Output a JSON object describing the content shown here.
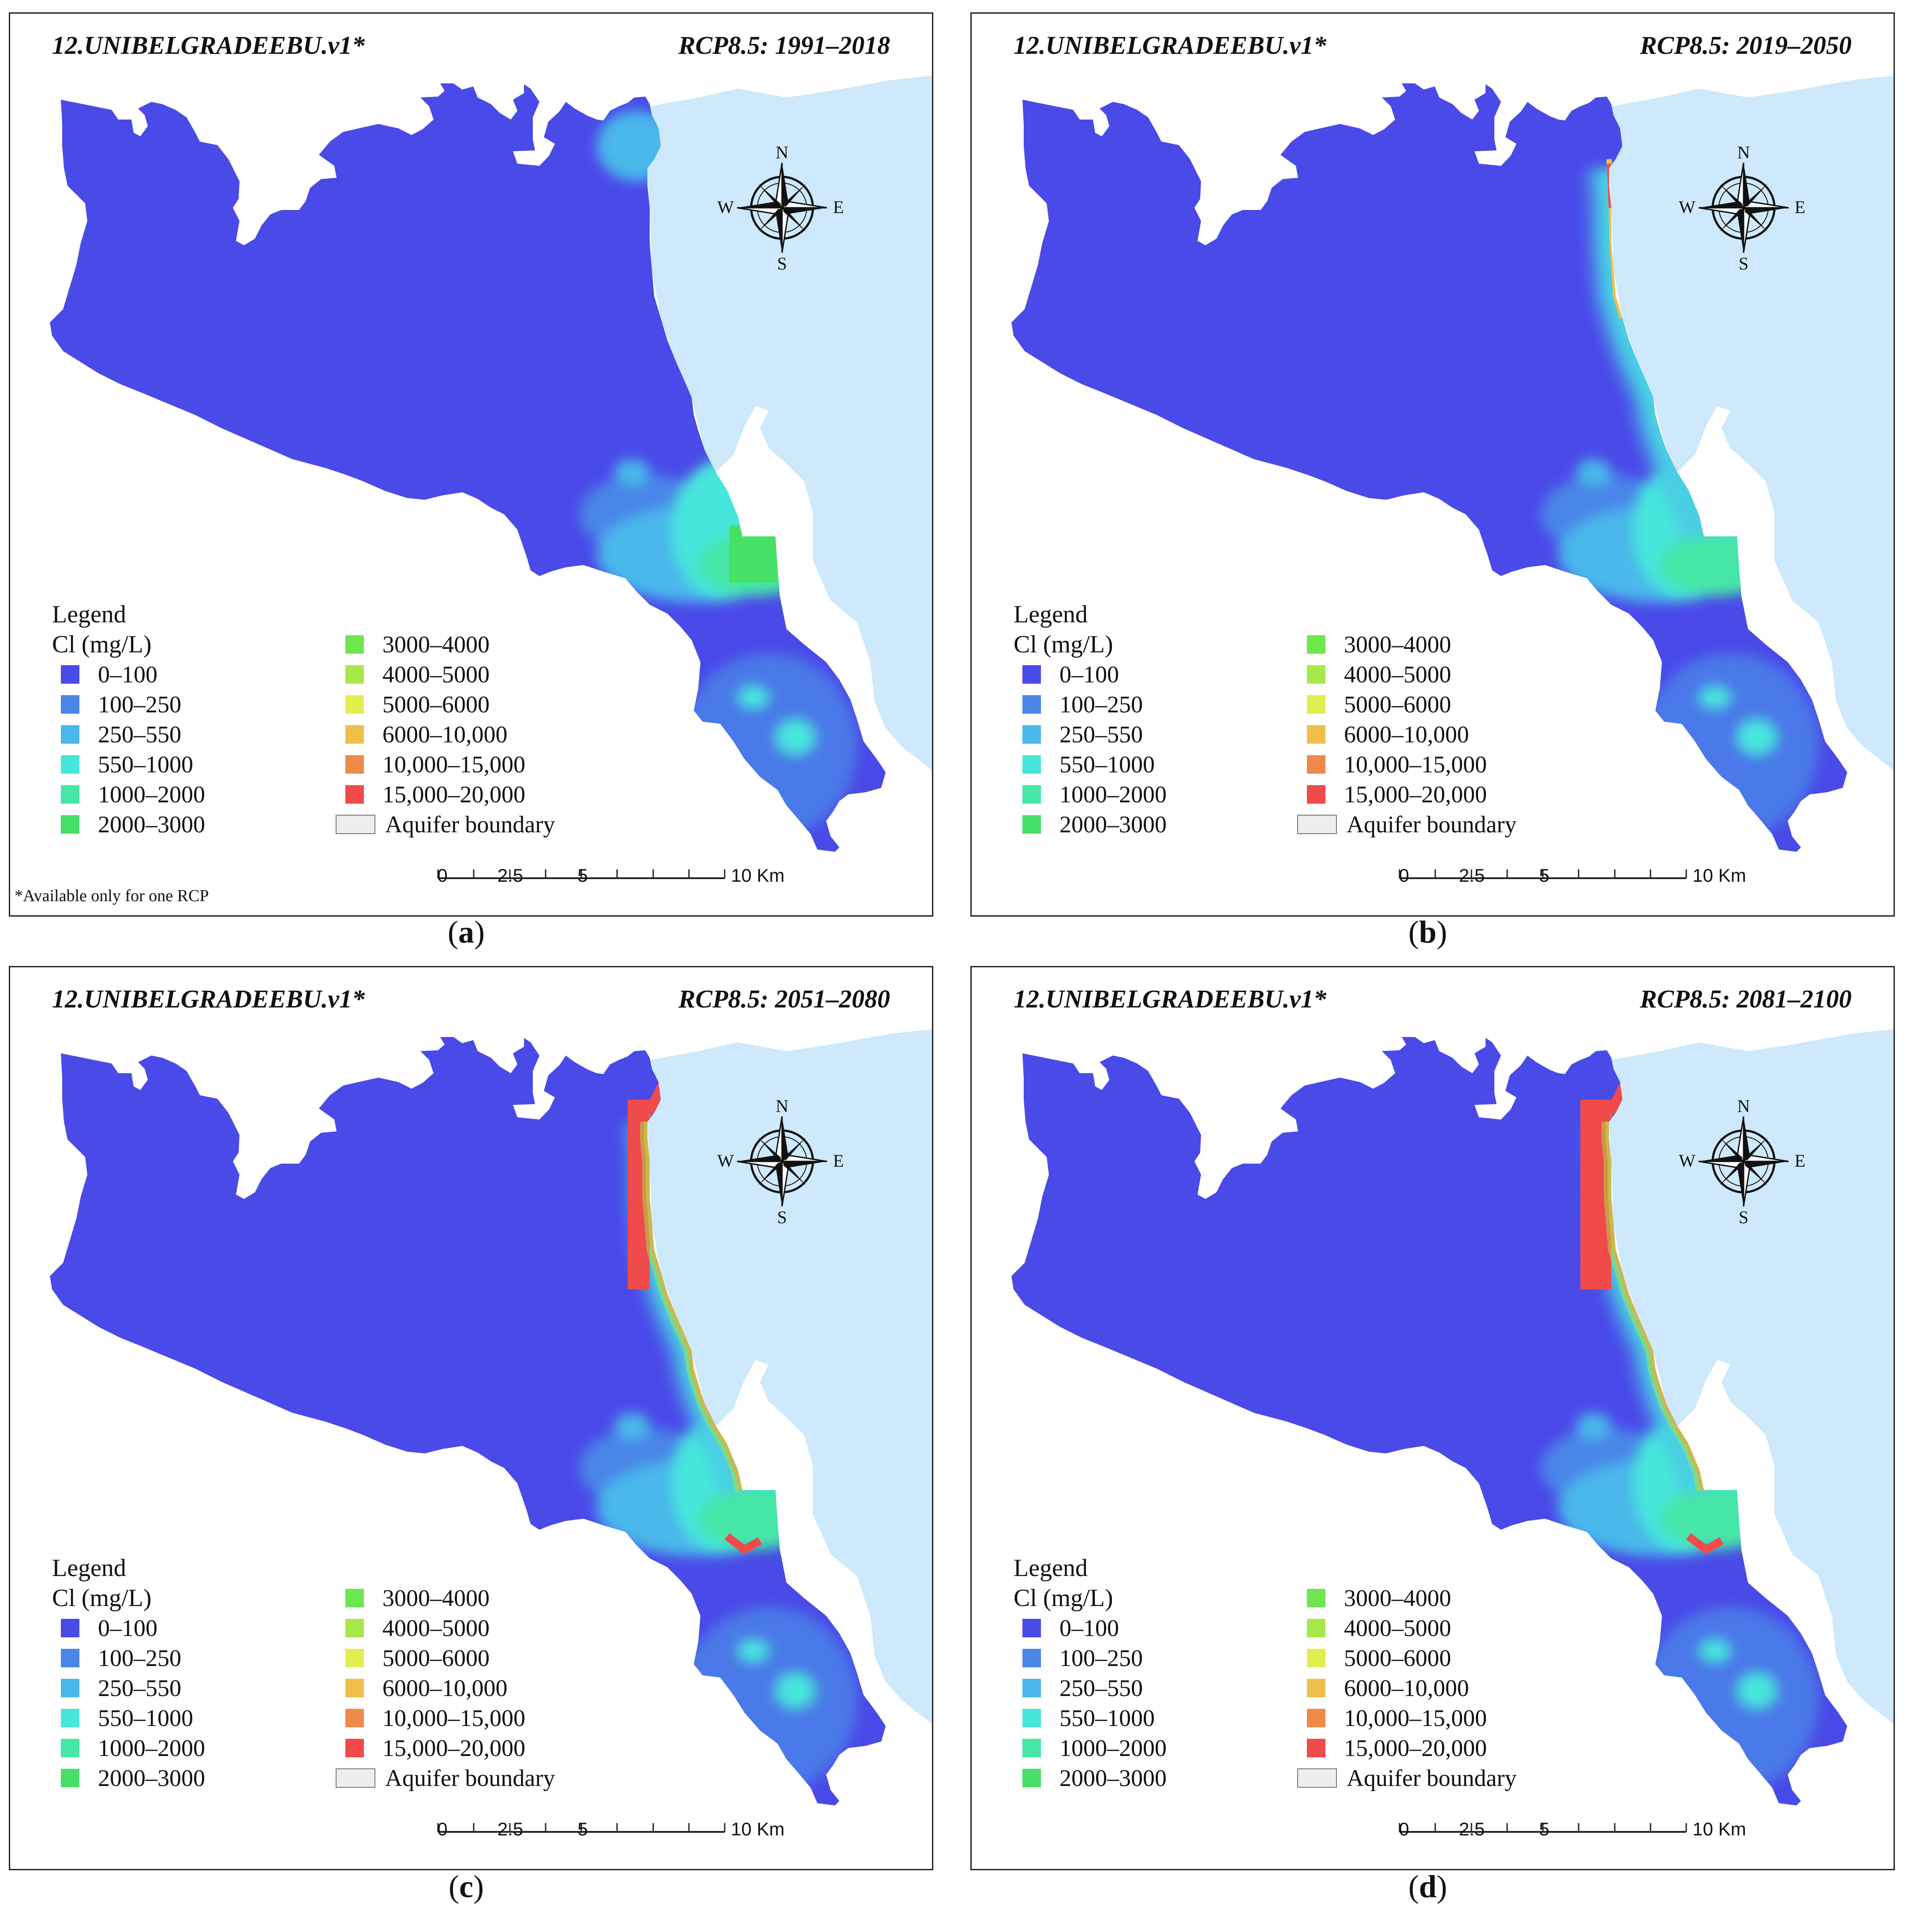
{
  "figure": {
    "model_label": "12.UNIBELGRADEEBU.v1*",
    "footnote": "*Available only for one RCP",
    "legend_title": "Legend",
    "legend_subtitle": "Cl (mg/L)",
    "legend_left": [
      {
        "label": "0–100",
        "color": "#4a4ae8"
      },
      {
        "label": "100–250",
        "color": "#4a86e8"
      },
      {
        "label": "250–550",
        "color": "#4ab8ea"
      },
      {
        "label": "550–1000",
        "color": "#46e6dc"
      },
      {
        "label": "1000–2000",
        "color": "#45e6a6"
      },
      {
        "label": "2000–3000",
        "color": "#46e066"
      }
    ],
    "legend_right": [
      {
        "label": "3000–4000",
        "color": "#6ee64e"
      },
      {
        "label": "4000–5000",
        "color": "#a6e84a"
      },
      {
        "label": "5000–6000",
        "color": "#e2ee4e"
      },
      {
        "label": "6000–10,000",
        "color": "#f0bf4a"
      },
      {
        "label": "10,000–15,000",
        "color": "#f08a4a"
      },
      {
        "label": "15,000–20,000",
        "color": "#f04a4a"
      }
    ],
    "boundary_label": "Aquifer boundary",
    "scale_ticks": [
      "0",
      "2.5",
      "5",
      "10 Km"
    ],
    "compass": {
      "n": "N",
      "s": "S",
      "e": "E",
      "w": "W"
    },
    "sea_color": "#cde9fb",
    "panels": [
      {
        "period": "RCP8.5: 1991–2018",
        "caption_letter": "a",
        "intrusion": 0
      },
      {
        "period": "RCP8.5: 2019–2050",
        "caption_letter": "b",
        "intrusion": 1
      },
      {
        "period": "RCP8.5: 2051–2080",
        "caption_letter": "c",
        "intrusion": 2
      },
      {
        "period": "RCP8.5: 2081–2100",
        "caption_letter": "d",
        "intrusion": 3
      }
    ]
  }
}
